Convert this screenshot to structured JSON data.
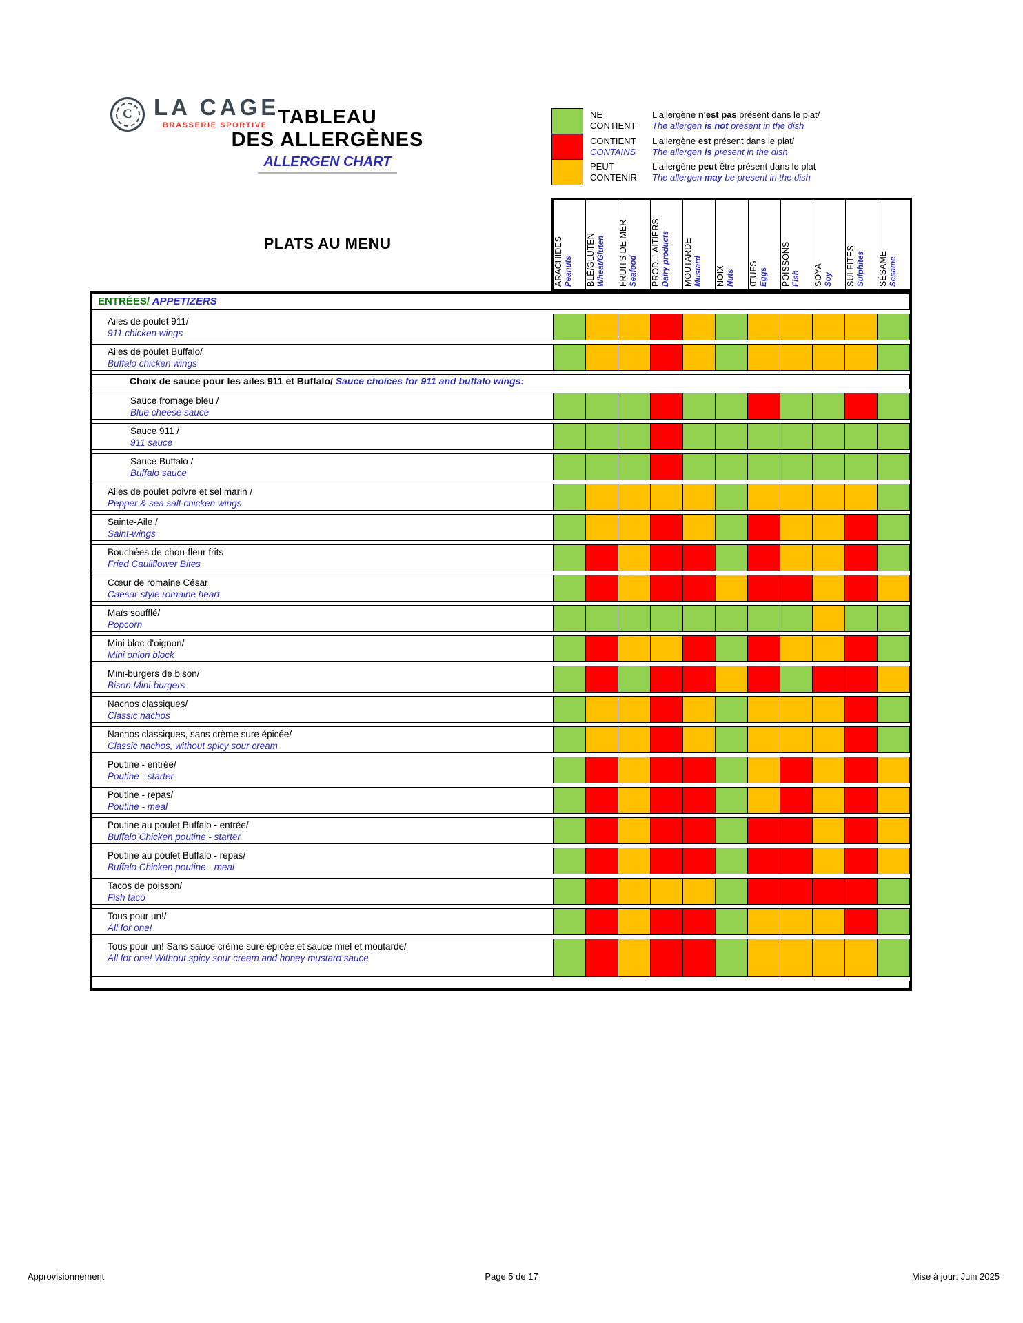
{
  "header": {
    "logo": {
      "monogram": "C",
      "brand": "LA CAGE",
      "tagline": "BRASSERIE SPORTIVE"
    },
    "title_fr_line1": "TABLEAU",
    "title_fr_line2": "DES ALLERGÈNES",
    "title_en": "ALLERGEN CHART"
  },
  "legend": {
    "items": [
      {
        "key": "G",
        "code_lines": [
          {
            "text": "NE",
            "style": "fr"
          },
          {
            "text": "CONTIENT",
            "style": "fr"
          }
        ],
        "fr": [
          "L'allergène ",
          "n'est pas",
          " présent dans le plat/"
        ],
        "en": [
          "The allergen ",
          "is not",
          " present in the dish"
        ]
      },
      {
        "key": "R",
        "code_lines": [
          {
            "text": "CONTIENT",
            "style": "fr"
          },
          {
            "text": "CONTAINS",
            "style": "en"
          }
        ],
        "fr": [
          "L'allergène ",
          "est",
          " présent dans le plat/"
        ],
        "en": [
          "The allergen ",
          "is",
          " present in the dish"
        ]
      },
      {
        "key": "Y",
        "code_lines": [
          {
            "text": "PEUT",
            "style": "fr"
          },
          {
            "text": "CONTENIR",
            "style": "fr"
          }
        ],
        "fr": [
          "L'allergène ",
          "peut",
          " être présent dans le plat"
        ],
        "en": [
          "The allergen ",
          "may",
          " be present in the dish"
        ]
      }
    ]
  },
  "menu_title": "PLATS AU MENU",
  "columns": [
    {
      "fr": "ARACHIDES",
      "en": "Peanuts"
    },
    {
      "fr": "BLÉ/GLUTEN",
      "en": "Wheat/Gluten"
    },
    {
      "fr": "FRUITS DE MER",
      "en": "Seafood"
    },
    {
      "fr": "PROD. LAITIERS",
      "en": "Dairy products"
    },
    {
      "fr": "MOUTARDE",
      "en": "Mustard"
    },
    {
      "fr": "NOIX",
      "en": "Nuts"
    },
    {
      "fr": "ŒUFS",
      "en": "Eggs"
    },
    {
      "fr": "POISSONS",
      "en": "Fish"
    },
    {
      "fr": "SOYA",
      "en": "Soy"
    },
    {
      "fr": "SULFITES",
      "en": "Sulphites"
    },
    {
      "fr": "SÉSAME",
      "en": "Sesame"
    }
  ],
  "colors": {
    "map": {
      "G": "#92D050",
      "R": "#FF0000",
      "Y": "#FFC000"
    },
    "meaning": {
      "G": "ne-contient",
      "R": "contient",
      "Y": "peut-contenir"
    }
  },
  "rows": [
    {
      "type": "section",
      "fr": "ENTRÉES/",
      "en": " APPETIZERS"
    },
    {
      "type": "dish",
      "fr": "Ailes de poulet 911/",
      "en": "911 chicken wings",
      "indent": 0,
      "cells": [
        "G",
        "Y",
        "Y",
        "R",
        "Y",
        "G",
        "Y",
        "Y",
        "Y",
        "Y",
        "G"
      ]
    },
    {
      "type": "dish",
      "fr": "Ailes de poulet Buffalo/",
      "en": "Buffalo chicken wings",
      "indent": 0,
      "cells": [
        "G",
        "Y",
        "Y",
        "R",
        "Y",
        "G",
        "Y",
        "Y",
        "Y",
        "Y",
        "G"
      ]
    },
    {
      "type": "subheader",
      "fr": "Choix de sauce pour les ailes 911 et Buffalo/",
      "en": " Sauce choices for 911 and buffalo wings:"
    },
    {
      "type": "dish",
      "fr": "Sauce fromage bleu /",
      "en": "Blue cheese sauce",
      "indent": 1,
      "cells": [
        "G",
        "G",
        "G",
        "R",
        "G",
        "G",
        "R",
        "G",
        "G",
        "R",
        "G"
      ]
    },
    {
      "type": "dish",
      "fr": "Sauce 911 /",
      "en": "911 sauce",
      "indent": 1,
      "cells": [
        "G",
        "G",
        "G",
        "R",
        "G",
        "G",
        "G",
        "G",
        "G",
        "G",
        "G"
      ]
    },
    {
      "type": "dish",
      "fr": "Sauce Buffalo /",
      "en": "Buffalo sauce",
      "indent": 1,
      "cells": [
        "G",
        "G",
        "G",
        "R",
        "G",
        "G",
        "G",
        "G",
        "G",
        "G",
        "G"
      ]
    },
    {
      "type": "dish",
      "fr": "Ailes de poulet poivre et sel marin /",
      "en": "Pepper & sea salt chicken wings",
      "indent": 0,
      "cells": [
        "G",
        "Y",
        "Y",
        "Y",
        "Y",
        "G",
        "Y",
        "Y",
        "Y",
        "Y",
        "G"
      ]
    },
    {
      "type": "dish",
      "fr": "Sainte-Aile /",
      "en": "Saint-wings",
      "indent": 0,
      "cells": [
        "G",
        "Y",
        "Y",
        "R",
        "Y",
        "G",
        "R",
        "Y",
        "Y",
        "R",
        "G"
      ]
    },
    {
      "type": "dish",
      "fr": "Bouchées de chou-fleur frits",
      "en": "Fried Cauliflower Bites",
      "indent": 0,
      "cells": [
        "G",
        "R",
        "Y",
        "R",
        "R",
        "G",
        "R",
        "Y",
        "Y",
        "R",
        "G"
      ]
    },
    {
      "type": "dish",
      "fr": "Cœur de romaine César",
      "en": "Caesar-style romaine heart",
      "indent": 0,
      "cells": [
        "G",
        "R",
        "Y",
        "R",
        "R",
        "Y",
        "R",
        "R",
        "Y",
        "R",
        "Y"
      ]
    },
    {
      "type": "dish",
      "fr": "Maïs soufflé/",
      "en": "Popcorn",
      "indent": 0,
      "cells": [
        "G",
        "G",
        "G",
        "G",
        "G",
        "G",
        "G",
        "G",
        "Y",
        "G",
        "G"
      ]
    },
    {
      "type": "dish",
      "fr": "Mini bloc d'oignon/",
      "en": "Mini onion block",
      "indent": 0,
      "cells": [
        "G",
        "R",
        "Y",
        "Y",
        "R",
        "G",
        "R",
        "Y",
        "Y",
        "R",
        "G"
      ]
    },
    {
      "type": "dish",
      "fr": "Mini-burgers de bison/",
      "en": "Bison Mini-burgers",
      "indent": 0,
      "cells": [
        "G",
        "R",
        "G",
        "R",
        "R",
        "Y",
        "R",
        "G",
        "R",
        "R",
        "Y"
      ]
    },
    {
      "type": "dish",
      "fr": "Nachos classiques/",
      "en": "Classic nachos",
      "indent": 0,
      "cells": [
        "G",
        "Y",
        "Y",
        "R",
        "Y",
        "G",
        "Y",
        "Y",
        "Y",
        "R",
        "G"
      ]
    },
    {
      "type": "dish",
      "fr": "Nachos classiques, sans crème sure épicée/",
      "en": "Classic nachos, without spicy sour cream",
      "indent": 0,
      "cells": [
        "G",
        "Y",
        "Y",
        "R",
        "Y",
        "G",
        "Y",
        "Y",
        "Y",
        "R",
        "G"
      ]
    },
    {
      "type": "dish",
      "fr": "Poutine - entrée/",
      "en": "Poutine - starter",
      "indent": 0,
      "cells": [
        "G",
        "R",
        "Y",
        "R",
        "R",
        "G",
        "Y",
        "R",
        "Y",
        "R",
        "Y"
      ]
    },
    {
      "type": "dish",
      "fr": "Poutine - repas/",
      "en": "Poutine - meal",
      "indent": 0,
      "cells": [
        "G",
        "R",
        "Y",
        "R",
        "R",
        "G",
        "Y",
        "R",
        "Y",
        "R",
        "Y"
      ]
    },
    {
      "type": "dish",
      "fr": "Poutine au poulet Buffalo - entrée/",
      "en": "Buffalo Chicken poutine - starter",
      "indent": 0,
      "cells": [
        "G",
        "R",
        "Y",
        "R",
        "R",
        "G",
        "R",
        "R",
        "Y",
        "R",
        "Y"
      ]
    },
    {
      "type": "dish",
      "fr": "Poutine au poulet Buffalo - repas/",
      "en": "Buffalo Chicken poutine - meal",
      "indent": 0,
      "cells": [
        "G",
        "R",
        "Y",
        "R",
        "R",
        "G",
        "R",
        "R",
        "Y",
        "R",
        "Y"
      ]
    },
    {
      "type": "dish",
      "fr": "Tacos de poisson/",
      "en": "Fish taco",
      "indent": 0,
      "cells": [
        "G",
        "R",
        "Y",
        "Y",
        "Y",
        "G",
        "R",
        "R",
        "R",
        "R",
        "G"
      ]
    },
    {
      "type": "dish",
      "fr": "Tous pour un!/",
      "en": " All for one!",
      "indent": 0,
      "cells": [
        "G",
        "R",
        "Y",
        "R",
        "R",
        "G",
        "Y",
        "Y",
        "Y",
        "R",
        "G"
      ]
    },
    {
      "type": "dish",
      "fr": "Tous pour un! Sans sauce crème sure épicée et sauce miel et moutarde/",
      "en": "All for one! Without spicy sour cream and honey mustard sauce",
      "indent": 0,
      "h": 56,
      "cells": [
        "G",
        "R",
        "Y",
        "R",
        "R",
        "G",
        "Y",
        "Y",
        "Y",
        "Y",
        "G"
      ]
    },
    {
      "type": "empty"
    }
  ],
  "footer": {
    "left": "Approvisionnement",
    "center": "Page 5 de 17",
    "right": "Mise à jour: Juin 2025"
  }
}
